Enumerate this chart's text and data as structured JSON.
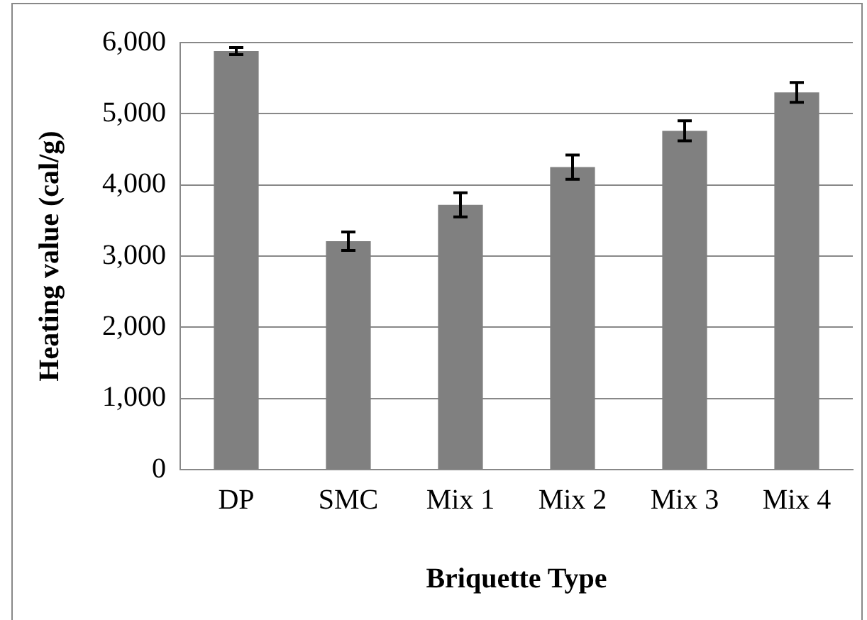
{
  "chart_data": {
    "type": "bar",
    "xlabel": "Briquette Type",
    "ylabel": "Heating value (cal/g)",
    "categories": [
      "DP",
      "SMC",
      "Mix 1",
      "Mix 2",
      "Mix 3",
      "Mix 4"
    ],
    "values": [
      5880,
      3210,
      3720,
      4250,
      4760,
      5300
    ],
    "errors": [
      50,
      130,
      170,
      170,
      140,
      140
    ],
    "color": "#808080",
    "ylim": [
      0,
      6000
    ],
    "yticks": [
      {
        "value": 0,
        "label": "0"
      },
      {
        "value": 1000,
        "label": "1,000"
      },
      {
        "value": 2000,
        "label": "2,000"
      },
      {
        "value": 3000,
        "label": "3,000"
      },
      {
        "value": 4000,
        "label": "4,000"
      },
      {
        "value": 5000,
        "label": "5,000"
      },
      {
        "value": 6000,
        "label": "6,000"
      }
    ],
    "grid": "y",
    "legend": false
  }
}
